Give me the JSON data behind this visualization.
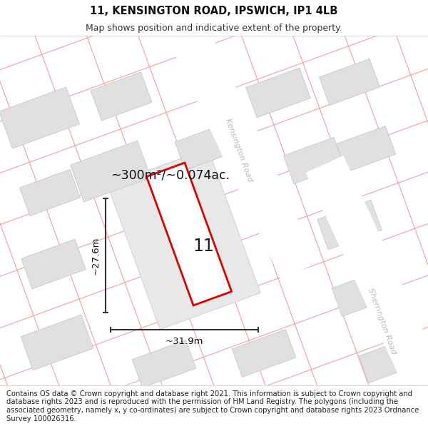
{
  "title": "11, KENSINGTON ROAD, IPSWICH, IP1 4LB",
  "subtitle": "Map shows position and indicative extent of the property.",
  "area_label": "~300m²/~0.074ac.",
  "number_label": "11",
  "width_label": "~31.9m",
  "height_label": "~27.6m",
  "footer": "Contains OS data © Crown copyright and database right 2021. This information is subject to Crown copyright and database rights 2023 and is reproduced with the permission of HM Land Registry. The polygons (including the associated geometry, namely x, y co-ordinates) are subject to Crown copyright and database rights 2023 Ordnance Survey 100026316.",
  "bg_color": "#ffffff",
  "map_bg": "#f8f8f8",
  "road_color": "#ffffff",
  "building_color": "#e0e0e0",
  "building_outline": "#c8c8c8",
  "property_bg": "#e8e8e8",
  "red_outline": "#dd0000",
  "road_line_color": "#f0a0a0",
  "road_label_color": "#bbbbbb",
  "dim_line_color": "#333333",
  "title_fontsize": 10.5,
  "subtitle_fontsize": 9,
  "footer_fontsize": 7.2,
  "map_border_color": "#cccccc"
}
